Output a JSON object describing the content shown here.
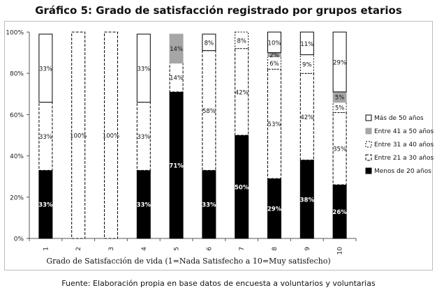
{
  "page": {
    "title": "Gráfico 5: Grado de satisfacción registrado por grupos etarios",
    "source": "Fuente: Elaboración propia en base datos de encuesta a voluntarios y voluntarias"
  },
  "chart_data": {
    "type": "bar",
    "stacked": true,
    "percent": true,
    "categories": [
      "1",
      "2",
      "3",
      "4",
      "5",
      "6",
      "7",
      "8",
      "9",
      "10"
    ],
    "series": [
      {
        "name": "Menos de 20 años",
        "values": [
          33,
          0,
          0,
          33,
          71,
          33,
          50,
          29,
          38,
          26
        ],
        "labels": [
          "33%",
          "",
          "",
          "33%",
          "71%",
          "33%",
          "50%",
          "29%",
          "38%",
          "26%"
        ],
        "style": "black"
      },
      {
        "name": "Entre 21 a 30 años",
        "values": [
          33,
          100,
          100,
          33,
          14,
          58,
          42,
          53,
          42,
          35
        ],
        "labels": [
          "33%",
          "100%",
          "100%",
          "33%",
          "14%",
          "58%",
          "42%",
          "53%",
          "42%",
          "35%"
        ],
        "style": "dashed"
      },
      {
        "name": "Entre 31 a 40 años",
        "values": [
          0,
          0,
          0,
          0,
          0,
          0,
          8,
          6,
          9,
          5
        ],
        "labels": [
          "",
          "",
          "",
          "",
          "",
          "",
          "8%",
          "6%",
          "9%",
          "5%"
        ],
        "style": "dotted"
      },
      {
        "name": "Entre 41 a 50 años",
        "values": [
          0,
          0,
          0,
          0,
          14,
          0,
          0,
          2,
          0,
          5
        ],
        "labels": [
          "",
          "",
          "",
          "",
          "14%",
          "",
          "",
          "2%",
          "",
          "5%"
        ],
        "style": "gray"
      },
      {
        "name": "Más de 50 años",
        "values": [
          33,
          0,
          0,
          33,
          0,
          8,
          0,
          10,
          11,
          29
        ],
        "labels": [
          "33%",
          "",
          "",
          "33%",
          "",
          "8%",
          "",
          "10%",
          "11%",
          "29%"
        ],
        "style": "white"
      }
    ],
    "y_ticks": [
      "0%",
      "20%",
      "40%",
      "60%",
      "80%",
      "100%"
    ],
    "ylim": [
      0,
      100
    ],
    "xlabel": "Grado de Satisfacción de vida (1=Nada Satisfecho a 10=Muy satisfecho)",
    "ylabel": "",
    "legend_position": "right",
    "grid": false,
    "colors": {
      "black": "#000000",
      "gray": "#a6a6a6",
      "border": "#000000",
      "white": "#ffffff"
    }
  }
}
